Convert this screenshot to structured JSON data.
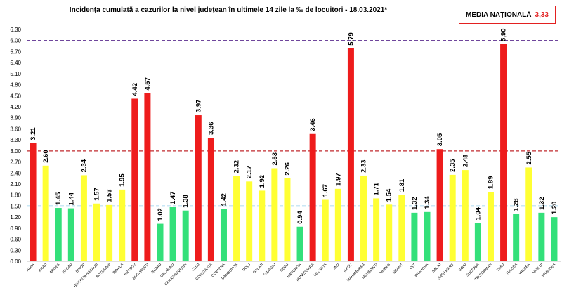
{
  "chart_data": {
    "type": "bar",
    "title": "Incidența cumulată a cazurilor la nivel județean în ultimele 14 zile la ‰ de locuitori - 18.03.2021*",
    "national_average_label": "MEDIA NAȚIONALĂ",
    "national_average_value": "3,33",
    "ylim": [
      0,
      6.3
    ],
    "yticks": [
      "0.00",
      "0.30",
      "0.60",
      "0.90",
      "1.20",
      "1.50",
      "1.80",
      "2.10",
      "2.40",
      "2.70",
      "3.00",
      "3.30",
      "3.60",
      "3.90",
      "4.20",
      "4.50",
      "4.80",
      "5.10",
      "5.40",
      "5.70",
      "6.00",
      "6.30"
    ],
    "reference_lines": [
      {
        "value": 6.0,
        "color": "#5b2d8e"
      },
      {
        "value": 3.0,
        "color": "#c0282d"
      },
      {
        "value": 1.5,
        "color": "#2aa0d8"
      }
    ],
    "colors": {
      "red": "#ee1c1c",
      "yellow": "#ffff33",
      "green": "#33e07a"
    },
    "categories": [
      "ALBA",
      "ARAD",
      "ARGES",
      "BACAU",
      "BIHOR",
      "BISTRITA NASAUD",
      "BOTOSANI",
      "BRAILA",
      "BRASOV",
      "BUCURESTI",
      "BUZAU",
      "CALARASI",
      "CARAS-SEVERIN",
      "CLUJ",
      "CONSTANTA",
      "COVASNA",
      "DAMBOVITA",
      "DOLJ",
      "GALATI",
      "GIURGIU",
      "GORJ",
      "HARGHITA",
      "HUNEDOARA",
      "IALOMITA",
      "IASI",
      "ILFOV",
      "MARAMURES",
      "MEHEDINTI",
      "MURES",
      "NEAMT",
      "OLT",
      "PRAHOVA",
      "SALAJ",
      "SATU MARE",
      "SIBIU",
      "SUCEAVA",
      "TELEORMAN",
      "TIMIS",
      "TULCEA",
      "VALCEA",
      "VASLUI",
      "VRANCEA"
    ],
    "values": [
      3.21,
      2.6,
      1.45,
      1.44,
      2.34,
      1.57,
      1.53,
      1.95,
      4.42,
      4.57,
      1.02,
      1.47,
      1.38,
      3.97,
      3.36,
      1.42,
      2.32,
      2.17,
      1.92,
      2.53,
      2.26,
      0.94,
      3.46,
      1.67,
      1.97,
      5.79,
      2.33,
      1.71,
      1.54,
      1.81,
      1.32,
      1.34,
      3.05,
      2.35,
      2.48,
      1.04,
      1.89,
      5.9,
      1.28,
      2.55,
      1.32,
      1.2
    ],
    "value_labels": [
      "3.21",
      "2.60",
      "1.45",
      "1.44",
      "2.34",
      "1.57",
      "1.53",
      "1.95",
      "4.42",
      "4.57",
      "1.02",
      "1.47",
      "1.38",
      "3.97",
      "3.36",
      "1.42",
      "2.32",
      "2.17",
      "1.92",
      "2.53",
      "2.26",
      "0.94",
      "3.46",
      "1.67",
      "1.97",
      "5,79",
      "2.33",
      "1.71",
      "1.54",
      "1.81",
      "1.32",
      "1.34",
      "3.05",
      "2.35",
      "2.48",
      "1.04",
      "1.89",
      "5,90",
      "1.28",
      "2.55",
      "1.32",
      "1.20"
    ]
  }
}
